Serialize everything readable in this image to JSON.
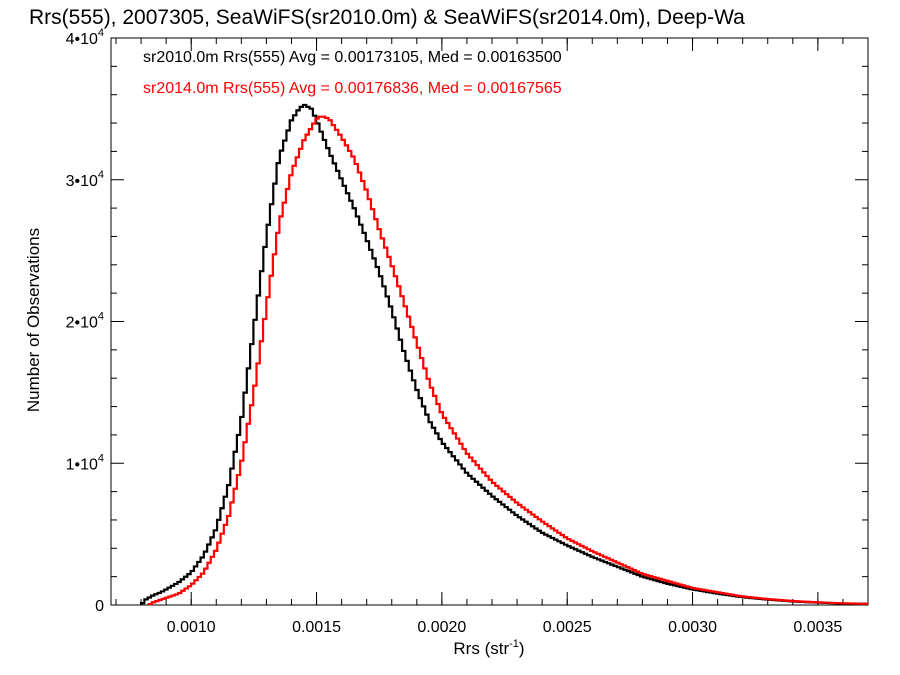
{
  "chart_data": {
    "type": "line",
    "step": true,
    "title": "Rrs(555), 2007305, SeaWiFS(sr2010.0m) & SeaWiFS(sr2014.0m), Deep-Wa",
    "xlabel_main": "Rrs (str",
    "xlabel_sup": "-1",
    "xlabel_tail": ")",
    "ylabel": "Number of Observations",
    "xlim": [
      0.00068,
      0.0037
    ],
    "ylim": [
      0,
      40000
    ],
    "x_ticks": [
      {
        "value": 0.001,
        "label": "0.0010"
      },
      {
        "value": 0.0015,
        "label": "0.0015"
      },
      {
        "value": 0.002,
        "label": "0.0020"
      },
      {
        "value": 0.0025,
        "label": "0.0025"
      },
      {
        "value": 0.003,
        "label": "0.0030"
      },
      {
        "value": 0.0035,
        "label": "0.0035"
      }
    ],
    "y_ticks": [
      {
        "value": 0,
        "mant": "0",
        "exp": ""
      },
      {
        "value": 10000,
        "mant": "1•10",
        "exp": "4"
      },
      {
        "value": 20000,
        "mant": "2•10",
        "exp": "4"
      },
      {
        "value": 30000,
        "mant": "3•10",
        "exp": "4"
      },
      {
        "value": 40000,
        "mant": "4•10",
        "exp": "4"
      }
    ],
    "grid": false,
    "annotations": [
      {
        "text": "sr2010.0m Rrs(555) Avg = 0.00173105, Med = 0.00163500",
        "color": "#000000"
      },
      {
        "text": "sr2014.0m Rrs(555) Avg = 0.00176836, Med = 0.00167565",
        "color": "#ff0000"
      }
    ],
    "series": [
      {
        "color": "#000000",
        "x": [
          0.0008,
          0.00082,
          0.00085,
          0.00088,
          0.0009,
          0.00095,
          0.001,
          0.00105,
          0.0011,
          0.00115,
          0.0012,
          0.00125,
          0.0013,
          0.00135,
          0.0014,
          0.00143,
          0.00145,
          0.00148,
          0.0015,
          0.00155,
          0.0016,
          0.00165,
          0.0017,
          0.00175,
          0.0018,
          0.00185,
          0.0019,
          0.00195,
          0.002,
          0.0021,
          0.0022,
          0.0023,
          0.0024,
          0.0025,
          0.0026,
          0.0027,
          0.0028,
          0.0029,
          0.003,
          0.0031,
          0.0032,
          0.0033,
          0.0034,
          0.0035,
          0.0036,
          0.0037
        ],
        "y": [
          0,
          400,
          700,
          900,
          1100,
          1600,
          2300,
          3500,
          5400,
          8500,
          13000,
          19500,
          26000,
          31500,
          34200,
          35000,
          35300,
          35000,
          34200,
          32000,
          30000,
          28000,
          25800,
          23500,
          20800,
          17800,
          15200,
          13000,
          11500,
          9300,
          7700,
          6300,
          5100,
          4200,
          3400,
          2700,
          2000,
          1500,
          1100,
          800,
          550,
          380,
          250,
          170,
          110,
          70
        ]
      },
      {
        "color": "#ff0000",
        "x": [
          0.00083,
          0.00085,
          0.0009,
          0.00095,
          0.001,
          0.00105,
          0.0011,
          0.00115,
          0.0012,
          0.00125,
          0.0013,
          0.00135,
          0.0014,
          0.00145,
          0.0015,
          0.00152,
          0.00155,
          0.0016,
          0.00165,
          0.0017,
          0.00175,
          0.0018,
          0.00185,
          0.0019,
          0.00195,
          0.002,
          0.0021,
          0.0022,
          0.0023,
          0.0024,
          0.0025,
          0.0026,
          0.0027,
          0.0028,
          0.0029,
          0.003,
          0.0031,
          0.0032,
          0.0033,
          0.0034,
          0.0035,
          0.0036,
          0.0037
        ],
        "y": [
          0,
          200,
          500,
          800,
          1400,
          2300,
          3900,
          6300,
          10000,
          15000,
          21000,
          26800,
          30500,
          32800,
          34300,
          34500,
          34300,
          33000,
          31500,
          29200,
          26500,
          24000,
          21300,
          18500,
          15700,
          13500,
          10700,
          8700,
          7200,
          5900,
          4700,
          3800,
          3000,
          2200,
          1700,
          1200,
          900,
          600,
          420,
          280,
          190,
          120,
          80
        ]
      }
    ]
  }
}
